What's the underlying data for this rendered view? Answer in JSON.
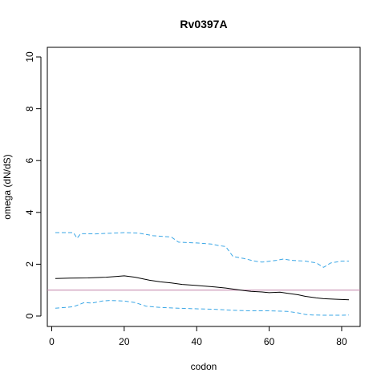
{
  "chart_data": {
    "type": "line",
    "title": "Rv0397A",
    "xlabel": "codon",
    "ylabel": "omega (dN/dS)",
    "xlim": [
      1,
      82
    ],
    "ylim": [
      0,
      10
    ],
    "x_ticks": [
      0,
      20,
      40,
      60,
      80
    ],
    "y_ticks": [
      0,
      2,
      4,
      6,
      8,
      10
    ],
    "x_tick_labels": [
      "0",
      "20",
      "40",
      "60",
      "80"
    ],
    "y_tick_labels": [
      "0",
      "2",
      "4",
      "6",
      "8",
      "10"
    ],
    "grid": false,
    "legend": "none",
    "reference_line": {
      "y": 1,
      "color": "#c080a8"
    },
    "series": [
      {
        "role": "estimate",
        "color": "#000000",
        "style": "solid",
        "x": [
          1,
          5,
          10,
          15,
          18,
          20,
          23,
          27,
          30,
          33,
          36,
          40,
          45,
          48,
          50,
          53,
          55,
          58,
          60,
          63,
          65,
          68,
          70,
          73,
          75,
          78,
          82
        ],
        "y": [
          1.45,
          1.46,
          1.47,
          1.5,
          1.53,
          1.55,
          1.5,
          1.38,
          1.32,
          1.28,
          1.22,
          1.18,
          1.12,
          1.08,
          1.04,
          0.98,
          0.95,
          0.93,
          0.9,
          0.92,
          0.88,
          0.82,
          0.76,
          0.7,
          0.67,
          0.65,
          0.63
        ]
      },
      {
        "role": "upper",
        "color": "#3ba7e6",
        "style": "dashed",
        "x": [
          1,
          6,
          7,
          8,
          12,
          20,
          24,
          28,
          33,
          35,
          40,
          44,
          46,
          48,
          50,
          53,
          56,
          58,
          62,
          64,
          66,
          70,
          73,
          75,
          77,
          80,
          82
        ],
        "y": [
          3.22,
          3.22,
          3.0,
          3.18,
          3.17,
          3.22,
          3.2,
          3.1,
          3.05,
          2.85,
          2.82,
          2.78,
          2.72,
          2.68,
          2.3,
          2.22,
          2.12,
          2.08,
          2.15,
          2.2,
          2.15,
          2.12,
          2.05,
          1.88,
          2.05,
          2.12,
          2.12
        ]
      },
      {
        "role": "lower",
        "color": "#3ba7e6",
        "style": "dashed",
        "x": [
          1,
          6,
          9,
          11,
          14,
          16,
          20,
          23,
          26,
          30,
          35,
          40,
          45,
          50,
          55,
          60,
          65,
          68,
          70,
          72,
          75,
          80,
          82
        ],
        "y": [
          0.3,
          0.36,
          0.52,
          0.5,
          0.58,
          0.6,
          0.58,
          0.52,
          0.38,
          0.33,
          0.3,
          0.28,
          0.26,
          0.22,
          0.2,
          0.2,
          0.18,
          0.12,
          0.06,
          0.04,
          0.03,
          0.03,
          0.04
        ]
      }
    ]
  }
}
